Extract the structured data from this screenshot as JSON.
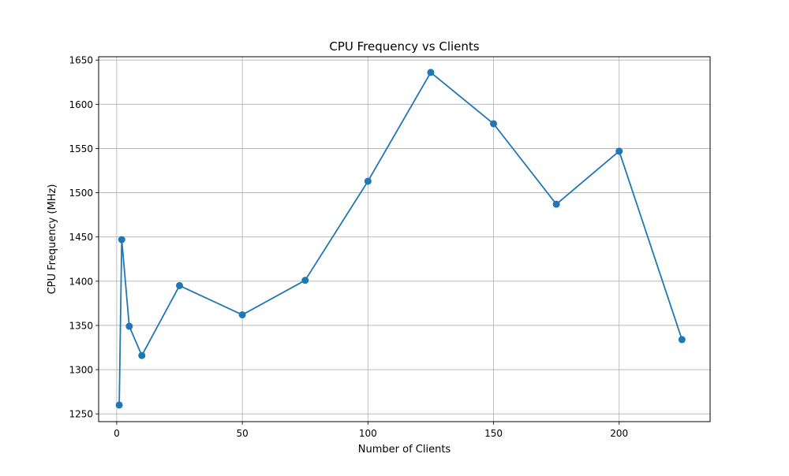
{
  "chart_data": {
    "type": "line",
    "title": "CPU Frequency vs Clients",
    "xlabel": "Number of Clients",
    "ylabel": "CPU Frequency (MHz)",
    "xlim": [
      -7.2,
      236.2
    ],
    "ylim": [
      1241.25,
      1653.75
    ],
    "xticks": [
      0,
      50,
      100,
      150,
      200
    ],
    "yticks": [
      1250,
      1300,
      1350,
      1400,
      1450,
      1500,
      1550,
      1600,
      1650
    ],
    "grid": true,
    "legend": "none",
    "marker": "circle",
    "colors": {
      "line": "#1f77b4",
      "grid": "#b0b0b0",
      "axes": "#000000"
    },
    "series": [
      {
        "x": [
          1,
          2,
          5,
          10,
          25,
          50,
          75,
          100,
          125,
          150,
          175,
          200,
          225
        ],
        "y": [
          1260,
          1447,
          1349,
          1316,
          1395,
          1362,
          1401,
          1513,
          1636,
          1578,
          1487,
          1547,
          1334
        ]
      }
    ]
  }
}
